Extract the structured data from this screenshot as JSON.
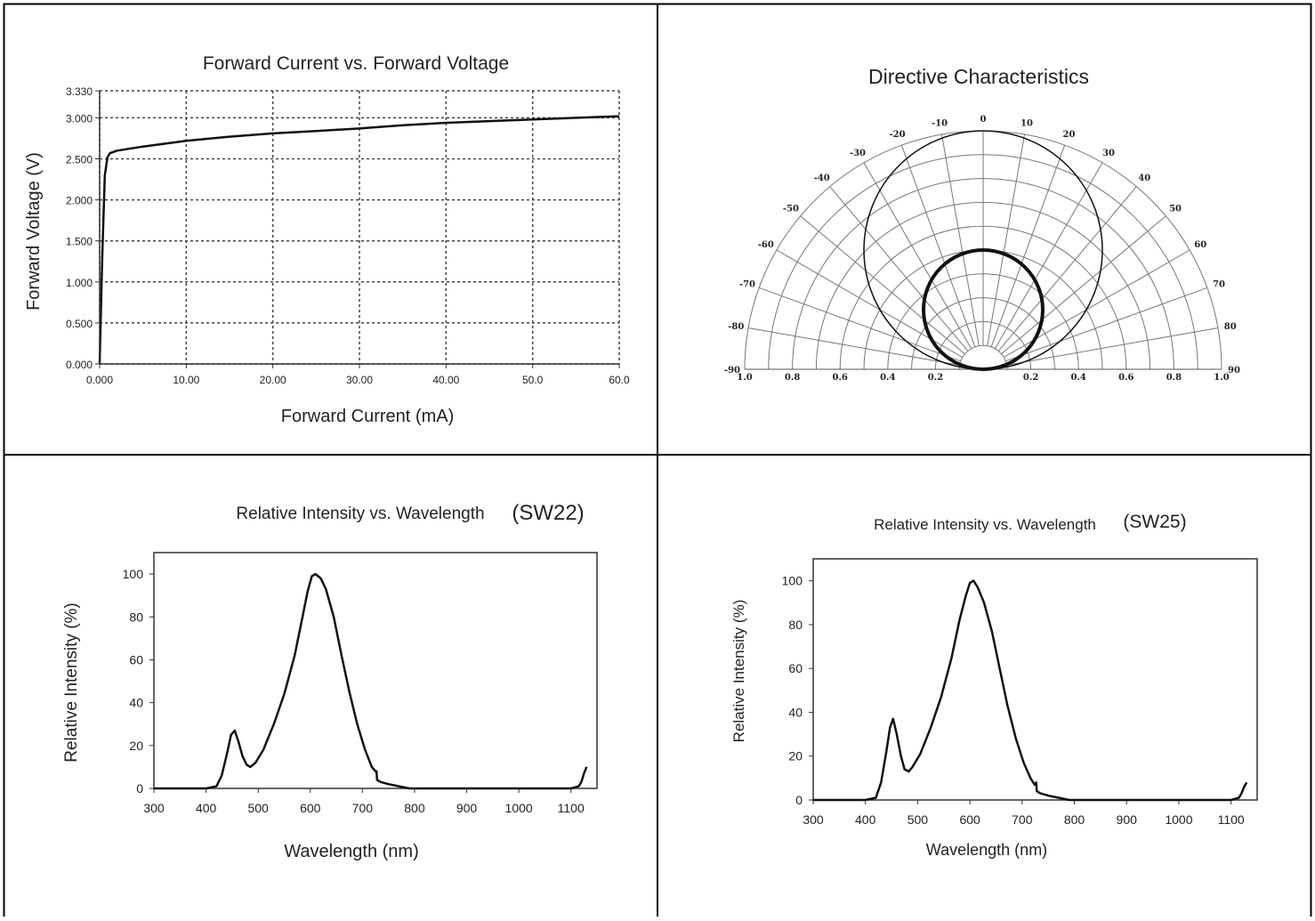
{
  "chart_data": [
    {
      "type": "line",
      "title": "Forward Current vs. Forward Voltage",
      "xlabel": "Forward Current (mA)",
      "ylabel": "Forward Voltage (V)",
      "xlim": [
        0,
        60
      ],
      "ylim": [
        0,
        3.33
      ],
      "x_ticks": [
        "0.000",
        "10.00",
        "20.00",
        "30.00",
        "40.00",
        "50.0",
        "60.0"
      ],
      "y_ticks": [
        "0.000",
        "0.500",
        "1.000",
        "1.500",
        "2.000",
        "2.500",
        "3.000",
        "3.330"
      ],
      "x_tick_values": [
        0,
        10,
        20,
        30,
        40,
        50,
        60
      ],
      "y_tick_values": [
        0,
        0.5,
        1.0,
        1.5,
        2.0,
        2.5,
        3.0,
        3.33
      ],
      "grid": true,
      "series": [
        {
          "x": [
            0,
            0.3,
            0.6,
            0.9,
            1.2,
            2,
            5,
            10,
            15,
            20,
            25,
            30,
            35,
            40,
            45,
            50,
            55,
            60
          ],
          "y": [
            0,
            1.3,
            2.3,
            2.52,
            2.57,
            2.6,
            2.65,
            2.72,
            2.77,
            2.81,
            2.84,
            2.87,
            2.91,
            2.94,
            2.96,
            2.98,
            3.0,
            3.02
          ]
        }
      ]
    },
    {
      "type": "polar",
      "title": "Directive Characteristics",
      "angle_labels": [
        "-90",
        "-80",
        "-70",
        "-60",
        "-50",
        "-40",
        "-30",
        "-20",
        "-10",
        "0",
        "10",
        "20",
        "30",
        "40",
        "50",
        "60",
        "70",
        "80",
        "90"
      ],
      "angle_values": [
        -90,
        -80,
        -70,
        -60,
        -50,
        -40,
        -30,
        -20,
        -10,
        0,
        10,
        20,
        30,
        40,
        50,
        60,
        70,
        80,
        90
      ],
      "radial_labels_left": [
        "1.0",
        "0.8",
        "0.6",
        "0.4",
        "0.2"
      ],
      "radial_labels_right": [
        "0.2",
        "0.4",
        "0.6",
        "0.8",
        "1.0"
      ],
      "radial_values": [
        0.2,
        0.4,
        0.6,
        0.8,
        1.0
      ],
      "curves": [
        {
          "shape": "circle",
          "diameter": 1.0,
          "stroke": "thin"
        },
        {
          "shape": "circle",
          "diameter": 0.5,
          "stroke": "thick"
        }
      ]
    },
    {
      "type": "line",
      "title": "Relative Intensity vs. Wavelength",
      "tag": "(SW22)",
      "xlabel": "Wavelength (nm)",
      "ylabel": "Relative Intensity (%)",
      "xlim": [
        300,
        1150
      ],
      "ylim": [
        0,
        110
      ],
      "x_ticks": [
        "300",
        "400",
        "500",
        "600",
        "700",
        "800",
        "900",
        "1000",
        "1100"
      ],
      "y_ticks": [
        "0",
        "20",
        "40",
        "60",
        "80",
        "100"
      ],
      "x_tick_values": [
        300,
        400,
        500,
        600,
        700,
        800,
        900,
        1000,
        1100
      ],
      "y_tick_values": [
        0,
        20,
        40,
        60,
        80,
        100
      ],
      "series": [
        {
          "x": [
            300,
            400,
            420,
            430,
            440,
            448,
            455,
            462,
            470,
            478,
            485,
            495,
            510,
            530,
            550,
            570,
            585,
            595,
            603,
            610,
            620,
            630,
            645,
            660,
            675,
            690,
            705,
            718,
            725,
            727,
            728,
            735,
            750,
            770,
            790,
            800,
            900,
            1000,
            1100,
            1115,
            1120,
            1125,
            1130
          ],
          "y": [
            0,
            0,
            1,
            6,
            16,
            25,
            27,
            22,
            15,
            11,
            10,
            12,
            18,
            30,
            44,
            62,
            80,
            92,
            99,
            100,
            98,
            93,
            80,
            62,
            45,
            30,
            18,
            10,
            8,
            8,
            4,
            3,
            2,
            1,
            0,
            0,
            0,
            0,
            0,
            1,
            3,
            7,
            10
          ]
        }
      ]
    },
    {
      "type": "line",
      "title": "Relative Intensity vs. Wavelength",
      "tag": "(SW25)",
      "xlabel": "Wavelength (nm)",
      "ylabel": "Relative Intensity (%)",
      "xlim": [
        300,
        1150
      ],
      "ylim": [
        0,
        110
      ],
      "x_ticks": [
        "300",
        "400",
        "500",
        "600",
        "700",
        "800",
        "900",
        "1000",
        "1100"
      ],
      "y_ticks": [
        "0",
        "20",
        "40",
        "60",
        "80",
        "100"
      ],
      "x_tick_values": [
        300,
        400,
        500,
        600,
        700,
        800,
        900,
        1000,
        1100
      ],
      "y_tick_values": [
        0,
        20,
        40,
        60,
        80,
        100
      ],
      "series": [
        {
          "x": [
            300,
            400,
            420,
            430,
            440,
            447,
            453,
            460,
            468,
            475,
            483,
            490,
            505,
            525,
            545,
            565,
            580,
            592,
            600,
            607,
            615,
            627,
            642,
            657,
            672,
            688,
            703,
            716,
            724,
            727,
            728,
            735,
            750,
            770,
            790,
            800,
            900,
            1000,
            1100,
            1115,
            1120,
            1125,
            1130
          ],
          "y": [
            0,
            0,
            1,
            8,
            22,
            33,
            37,
            30,
            20,
            14,
            13,
            15,
            21,
            33,
            47,
            65,
            82,
            93,
            99,
            100,
            97,
            90,
            77,
            60,
            43,
            28,
            17,
            10,
            7,
            8,
            4,
            3,
            2,
            1,
            0,
            0,
            0,
            0,
            0,
            1,
            3,
            6,
            8
          ]
        }
      ]
    }
  ]
}
